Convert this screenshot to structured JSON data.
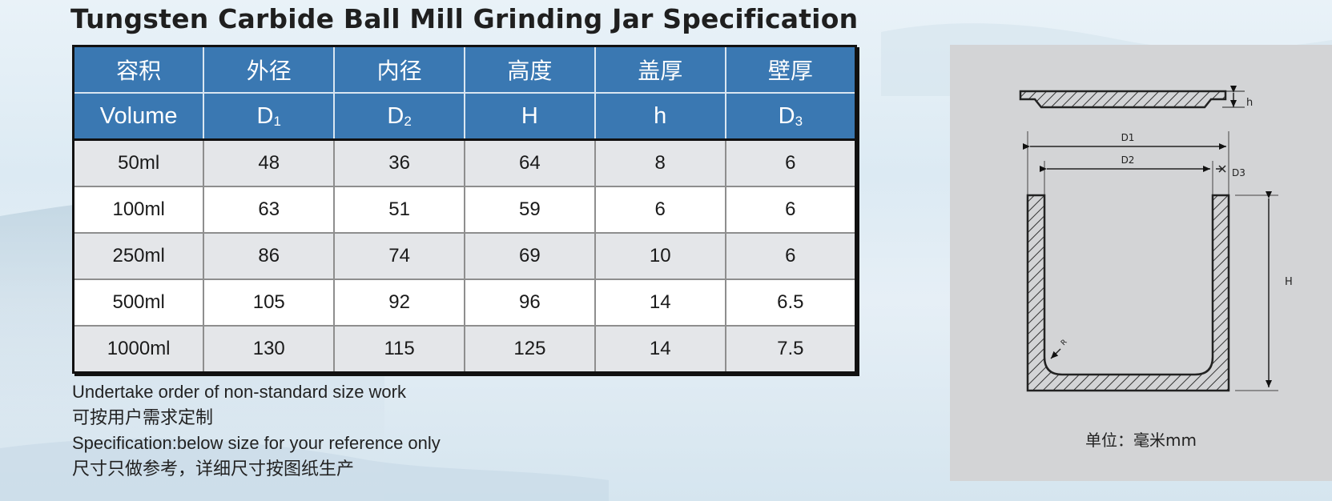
{
  "title": "Tungsten Carbide Ball Mill Grinding Jar Specification",
  "table": {
    "headers_cn": [
      "容积",
      "外径",
      "内径",
      "高度",
      "盖厚",
      "壁厚"
    ],
    "headers_en": [
      {
        "main": "Volume",
        "sub": ""
      },
      {
        "main": "D",
        "sub": "1"
      },
      {
        "main": "D",
        "sub": "2"
      },
      {
        "main": "H",
        "sub": ""
      },
      {
        "main": "h",
        "sub": ""
      },
      {
        "main": "D",
        "sub": "3"
      }
    ],
    "rows": [
      [
        "50ml",
        "48",
        "36",
        "64",
        "8",
        "6"
      ],
      [
        "100ml",
        "63",
        "51",
        "59",
        "6",
        "6"
      ],
      [
        "250ml",
        "86",
        "74",
        "69",
        "10",
        "6"
      ],
      [
        "500ml",
        "105",
        "92",
        "96",
        "14",
        "6.5"
      ],
      [
        "1000ml",
        "130",
        "115",
        "125",
        "14",
        "7.5"
      ]
    ]
  },
  "notes": [
    "Undertake order of non-standard size work",
    "可按用户需求定制",
    "Specification:below size for your reference only",
    "尺寸只做参考，详细尺寸按图纸生产"
  ],
  "diagram": {
    "labels": {
      "lid_h": "h",
      "d1": "D1",
      "d2": "D2",
      "d3": "D3",
      "height": "H",
      "radius": "R"
    },
    "unit": "单位：毫米mm"
  },
  "colors": {
    "header_bg": "#3a78b2",
    "row_odd": "#e4e6e9",
    "row_even": "#ffffff",
    "diagram_bg": "#d3d4d6"
  }
}
